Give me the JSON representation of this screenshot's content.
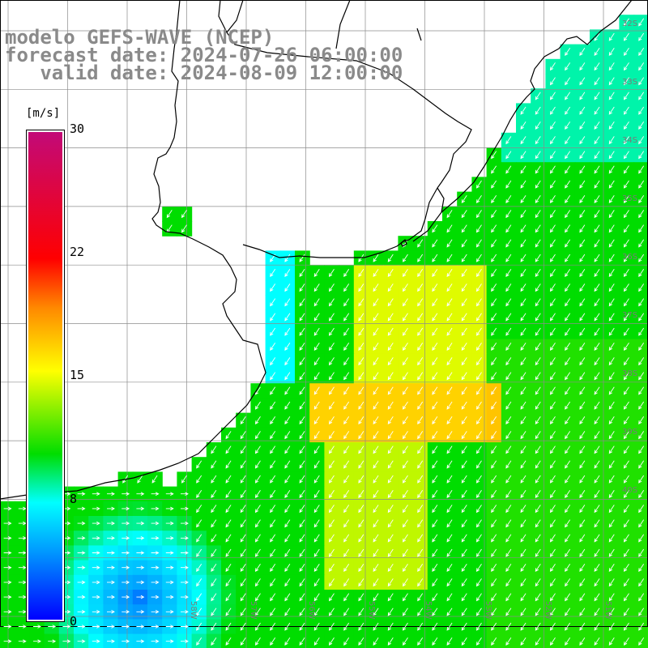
{
  "title": {
    "line1": "modelo GEFS-WAVE (NCEP)",
    "line2": "forecast date: 2024-07-26 06:00:00",
    "line3": "   valid date: 2024-08-09 12:00:00"
  },
  "colorbar": {
    "unit": "[m/s]",
    "ticks": [
      "30",
      "22",
      "15",
      "8",
      "0"
    ],
    "colors": [
      "#c20a78",
      "#ff0000",
      "#ff8800",
      "#ffff00",
      "#00dd00",
      "#00ffff",
      "#0099ff",
      "#0000ff"
    ]
  },
  "lat_labels": [
    "32S",
    "33S",
    "34S",
    "35S",
    "36S",
    "37S",
    "38S",
    "39S",
    "40S"
  ],
  "lon_labels": [
    "58W",
    "57W",
    "56W",
    "55W",
    "54W",
    "53W",
    "52W",
    "51W"
  ],
  "map": {
    "variable": "wind speed (m/s) with wind direction arrows",
    "coast_color": "#000000",
    "grid_color": "#8c8c8c",
    "arrow_color": "#ffffff"
  }
}
